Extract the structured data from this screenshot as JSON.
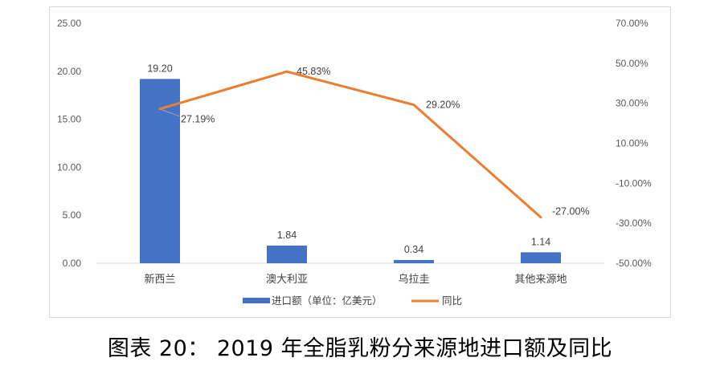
{
  "caption": "图表 20： 2019 年全脂乳粉分来源地进口额及同比",
  "chart_data": {
    "type": "bar+line",
    "categories": [
      "新西兰",
      "澳大利亚",
      "乌拉圭",
      "其他来源地"
    ],
    "series": [
      {
        "name": "进口额（单位：亿美元）",
        "type": "bar",
        "axis": "left",
        "color": "#4472C4",
        "values": [
          19.2,
          1.84,
          0.34,
          1.14
        ],
        "labels": [
          "19.20",
          "1.84",
          "0.34",
          "1.14"
        ]
      },
      {
        "name": "同比",
        "type": "line",
        "axis": "right",
        "color": "#ED7D31",
        "values": [
          27.19,
          45.83,
          29.2,
          -27.0
        ],
        "labels": [
          "27.19%",
          "45.83%",
          "29.20%",
          "-27.00%"
        ]
      }
    ],
    "y_left": {
      "min": 0,
      "max": 25,
      "step": 5,
      "ticks": [
        "0.00",
        "5.00",
        "10.00",
        "15.00",
        "20.00",
        "25.00"
      ]
    },
    "y_right": {
      "min": -50,
      "max": 70,
      "step": 20,
      "ticks": [
        "-50.00%",
        "-30.00%",
        "-10.00%",
        "10.00%",
        "30.00%",
        "50.00%",
        "70.00%"
      ]
    },
    "grid": false,
    "legend_position": "bottom"
  }
}
